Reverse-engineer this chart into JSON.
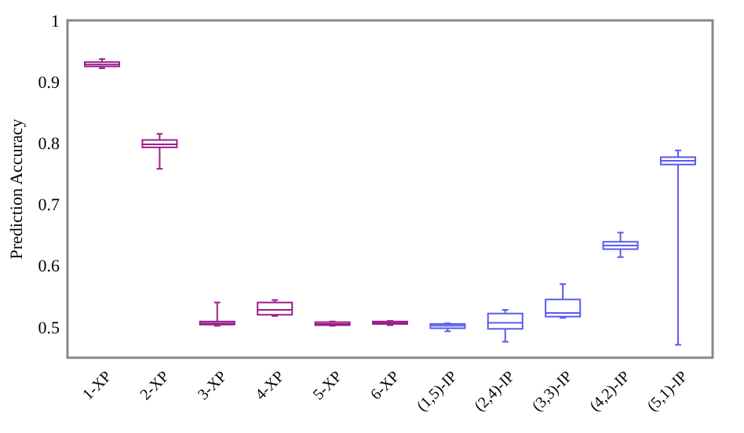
{
  "chart_data": {
    "type": "box",
    "ylabel": "Prediction Accuracy",
    "ylim": [
      0.45,
      1
    ],
    "yticks": [
      0.5,
      0.6,
      0.7,
      0.8,
      0.9,
      1
    ],
    "categories": [
      "1-XP",
      "2-XP",
      "3-XP",
      "4-XP",
      "5-XP",
      "6-XP",
      "(1,5)-IP",
      "(2,4)-IP",
      "(3,3)-IP",
      "(4,2)-IP",
      "(5,1)-IP"
    ],
    "series": [
      {
        "color": "#9b1e8c",
        "boxes": [
          {
            "low": 0.922,
            "q1": 0.925,
            "median": 0.928,
            "q3": 0.932,
            "high": 0.937
          },
          {
            "low": 0.758,
            "q1": 0.793,
            "median": 0.798,
            "q3": 0.805,
            "high": 0.815
          },
          {
            "low": 0.502,
            "q1": 0.504,
            "median": 0.506,
            "q3": 0.509,
            "high": 0.54
          },
          {
            "low": 0.518,
            "q1": 0.52,
            "median": 0.528,
            "q3": 0.54,
            "high": 0.544
          },
          {
            "low": 0.502,
            "q1": 0.503,
            "median": 0.505,
            "q3": 0.508,
            "high": 0.509
          },
          {
            "low": 0.503,
            "q1": 0.505,
            "median": 0.507,
            "q3": 0.509,
            "high": 0.51
          },
          null,
          null,
          null,
          null,
          null
        ]
      },
      {
        "color": "#5a5af0",
        "boxes": [
          null,
          null,
          null,
          null,
          null,
          null,
          {
            "low": 0.493,
            "q1": 0.498,
            "median": 0.502,
            "q3": 0.505,
            "high": 0.506
          },
          {
            "low": 0.476,
            "q1": 0.497,
            "median": 0.507,
            "q3": 0.522,
            "high": 0.528
          },
          {
            "low": 0.515,
            "q1": 0.517,
            "median": 0.523,
            "q3": 0.545,
            "high": 0.57
          },
          {
            "low": 0.614,
            "q1": 0.627,
            "median": 0.633,
            "q3": 0.639,
            "high": 0.654
          },
          {
            "low": 0.471,
            "q1": 0.765,
            "median": 0.771,
            "q3": 0.777,
            "high": 0.788
          }
        ]
      }
    ]
  }
}
